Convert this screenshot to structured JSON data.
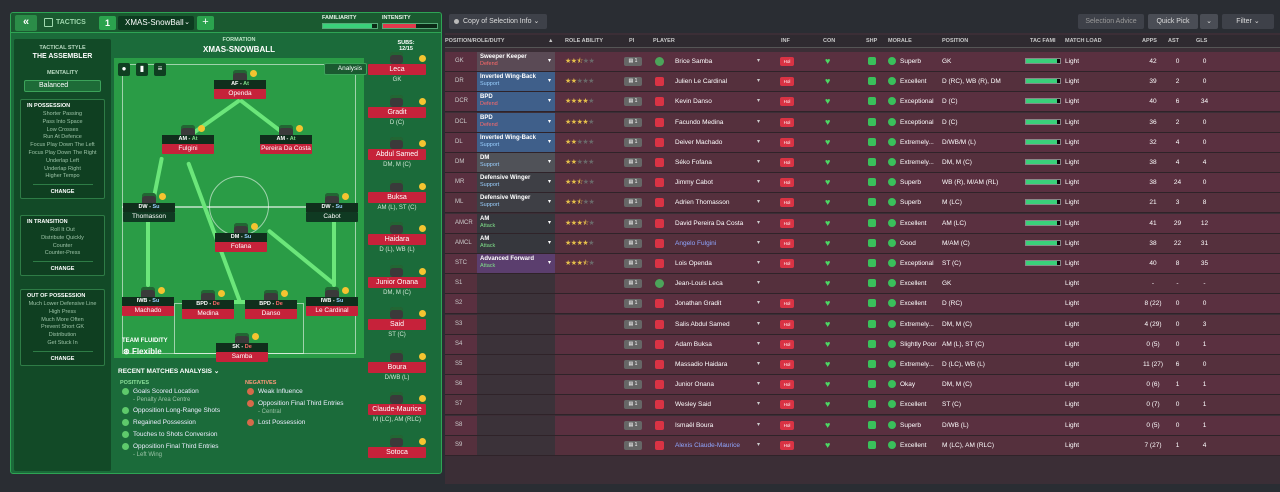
{
  "tactics": {
    "back_label": "«",
    "tactics_label": "TACTICS",
    "tactic_num": "1",
    "tactic_name": "XMAS-SnowBall",
    "plus_label": "+",
    "familiarity_label": "FAMILIARITY",
    "intensity_label": "INTENSITY",
    "familiarity_fraction": 0.9,
    "intensity_fraction": 0.62
  },
  "sidebar": {
    "style_label": "TACTICAL STYLE",
    "style_name": "THE ASSEMBLER",
    "mentality_label": "MENTALITY",
    "mentality_value": "Balanced",
    "possession": {
      "title": "IN POSSESSION",
      "items": [
        "Shorter Passing",
        "Pass Into Space",
        "Low Crosses",
        "Run At Defence",
        "Focus Play Down The Left",
        "Focus Play Down The Right",
        "Underlap Left",
        "Underlap Right",
        "Higher Tempo"
      ],
      "change": "CHANGE"
    },
    "transition": {
      "title": "IN TRANSITION",
      "items": [
        "Roll It Out",
        "Distribute Quickly",
        "Counter",
        "Counter-Press"
      ],
      "change": "CHANGE"
    },
    "outposs": {
      "title": "OUT OF POSSESSION",
      "items": [
        "Much Lower Defensive Line",
        "High Press",
        "Much More Often",
        "Prevent Short GK",
        "Distribution",
        "Get Stuck In"
      ],
      "change": "CHANGE"
    }
  },
  "formation": {
    "label": "FORMATION",
    "name": "XMAS-SNOWBALL",
    "subs_label": "SUBS:",
    "subs_count": "12/15",
    "analysis_label": "Analysis",
    "fluidity_label": "TEAM FLUIDITY",
    "fluidity_value": "Flexible",
    "players": [
      {
        "role": "AF",
        "duty": "At",
        "dc": "a",
        "name": "Openda",
        "dark": false
      },
      {
        "role": "AM",
        "duty": "At",
        "dc": "a",
        "name": "Fulgini",
        "dark": false
      },
      {
        "role": "AM",
        "duty": "At",
        "dc": "a",
        "name": "Pereira Da Costa",
        "dark": false
      },
      {
        "role": "DW",
        "duty": "Su",
        "dc": "s",
        "name": "Thomasson",
        "dark": true
      },
      {
        "role": "DW",
        "duty": "Su",
        "dc": "s",
        "name": "Cabot",
        "dark": true
      },
      {
        "role": "DM",
        "duty": "Su",
        "dc": "s",
        "name": "Fofana",
        "dark": false
      },
      {
        "role": "IWB",
        "duty": "Su",
        "dc": "s",
        "name": "Machado",
        "dark": false
      },
      {
        "role": "BPD",
        "duty": "De",
        "dc": "d",
        "name": "Medina",
        "dark": false
      },
      {
        "role": "BPD",
        "duty": "De",
        "dc": "d",
        "name": "Danso",
        "dark": false
      },
      {
        "role": "IWB",
        "duty": "Su",
        "dc": "s",
        "name": "Le Cardinal",
        "dark": false
      },
      {
        "role": "SK",
        "duty": "De",
        "dc": "d",
        "name": "Samba",
        "dark": false
      }
    ]
  },
  "subs": [
    {
      "name": "Leca",
      "pos": "GK"
    },
    {
      "name": "Gradit",
      "pos": "D (C)"
    },
    {
      "name": "Abdul Samed",
      "pos": "DM, M (C)"
    },
    {
      "name": "Buksa",
      "pos": "AM (L), ST (C)"
    },
    {
      "name": "Haidara",
      "pos": "D (L), WB (L)"
    },
    {
      "name": "Junior Onana",
      "pos": "DM, M (C)"
    },
    {
      "name": "Said",
      "pos": "ST (C)"
    },
    {
      "name": "Boura",
      "pos": "D/WB (L)"
    },
    {
      "name": "Claude-Maurice",
      "pos": "M (LC), AM (RLC)"
    },
    {
      "name": "Sotoca",
      "pos": ""
    }
  ],
  "analysis": {
    "title": "RECENT MATCHES ANALYSIS",
    "positives_label": "POSITIVES",
    "negatives_label": "NEGATIVES",
    "positives": [
      {
        "text": "Goals Scored Location",
        "sub": "- Penalty Area Centre"
      },
      {
        "text": "Opposition Long-Range Shots",
        "sub": ""
      },
      {
        "text": "Regained Possession",
        "sub": ""
      },
      {
        "text": "Touches to Shots Conversion",
        "sub": ""
      },
      {
        "text": "Opposition Final Third Entries",
        "sub": "- Left Wing"
      }
    ],
    "negatives": [
      {
        "text": "Weak Influence",
        "sub": ""
      },
      {
        "text": "Opposition Final Third Entries",
        "sub": "- Central"
      },
      {
        "text": "Lost Possession",
        "sub": ""
      }
    ]
  },
  "toolbar": {
    "copy_label": "Copy of Selection Info",
    "advice_label": "Selection Advice",
    "quickpick_label": "Quick Pick",
    "filter_label": "Filter"
  },
  "columns": {
    "pos": "POSITION/ROLE/DUTY",
    "ability": "ROLE ABILITY",
    "pi": "PI",
    "player": "PLAYER",
    "inf": "INF",
    "con": "CON",
    "shp": "SHP",
    "morale": "MORALE",
    "position": "POSITION",
    "fam": "TAC FAMI",
    "load": "MATCH LOAD",
    "apps": "APPS",
    "ast": "AST",
    "gls": "GLS"
  },
  "rows": [
    {
      "pos": "GK",
      "role": "Sweeper Keeper",
      "duty": "Defend",
      "rc": "#5a4a55",
      "dcol": "#ff6a6a",
      "stars": 2.5,
      "player": "Brice Samba",
      "pic": "g",
      "inf": "Hol",
      "morale": "Superb",
      "position": "GK",
      "fam": 0.92,
      "load": "Light",
      "apps": "42",
      "ast": "0",
      "gls": "0",
      "bg": "#5a3040",
      "link": false
    },
    {
      "pos": "DR",
      "role": "Inverted Wing-Back",
      "duty": "Support",
      "rc": "#3f5f8a",
      "dcol": "#9ad0ff",
      "stars": 2,
      "player": "Julien Le Cardinal",
      "pic": "r",
      "inf": "Hol",
      "morale": "Excellent",
      "position": "D (RC), WB (R), DM",
      "fam": 0.9,
      "load": "Light",
      "apps": "39",
      "ast": "2",
      "gls": "0",
      "bg": "#55303d",
      "link": false
    },
    {
      "pos": "DCR",
      "role": "BPD",
      "duty": "Defend",
      "rc": "#3f5f8a",
      "dcol": "#ff6a6a",
      "stars": 4,
      "player": "Kevin Danso",
      "pic": "r",
      "inf": "Hol",
      "morale": "Exceptional",
      "position": "D (C)",
      "fam": 0.92,
      "load": "Light",
      "apps": "40",
      "ast": "6",
      "gls": "34",
      "bg": "#5a3040",
      "link": false
    },
    {
      "pos": "DCL",
      "role": "BPD",
      "duty": "Defend",
      "rc": "#3f5f8a",
      "dcol": "#ff6a6a",
      "stars": 4,
      "player": "Facundo Medina",
      "pic": "r",
      "inf": "Hol",
      "morale": "Exceptional",
      "position": "D (C)",
      "fam": 0.92,
      "load": "Light",
      "apps": "36",
      "ast": "2",
      "gls": "0",
      "bg": "#55303d",
      "link": false
    },
    {
      "pos": "DL",
      "role": "Inverted Wing-Back",
      "duty": "Support",
      "rc": "#3f5f8a",
      "dcol": "#9ad0ff",
      "stars": 2,
      "player": "Deiver Machado",
      "pic": "r",
      "inf": "Hol",
      "morale": "Extremely...",
      "position": "D/WB/M (L)",
      "fam": 0.9,
      "load": "Light",
      "apps": "32",
      "ast": "4",
      "gls": "0",
      "bg": "#5a3040",
      "link": false
    },
    {
      "pos": "DM",
      "role": "DM",
      "duty": "Support",
      "rc": "#505258",
      "dcol": "#9ad0ff",
      "stars": 2,
      "player": "Séko Fofana",
      "pic": "r",
      "inf": "Hol",
      "morale": "Extremely...",
      "position": "DM, M (C)",
      "fam": 0.92,
      "load": "Light",
      "apps": "38",
      "ast": "4",
      "gls": "4",
      "bg": "#55303d",
      "link": false
    },
    {
      "pos": "MR",
      "role": "Defensive Winger",
      "duty": "Support",
      "rc": "#3e3f45",
      "dcol": "#9ad0ff",
      "stars": 2.5,
      "player": "Jimmy Cabot",
      "pic": "r",
      "inf": "Hol",
      "morale": "Superb",
      "position": "WB (R), M/AM (RL)",
      "fam": 0.9,
      "load": "Light",
      "apps": "38",
      "ast": "24",
      "gls": "0",
      "bg": "#5a3040",
      "link": false
    },
    {
      "pos": "ML",
      "role": "Defensive Winger",
      "duty": "Support",
      "rc": "#3e3f45",
      "dcol": "#9ad0ff",
      "stars": 2.5,
      "player": "Adrien Thomasson",
      "pic": "r",
      "inf": "Hol",
      "morale": "Superb",
      "position": "M (LC)",
      "fam": 0.9,
      "load": "Light",
      "apps": "21",
      "ast": "3",
      "gls": "8",
      "bg": "#55303d",
      "link": false
    },
    {
      "pos": "AMCR",
      "role": "AM",
      "duty": "Attack",
      "rc": "#36373d",
      "dcol": "#7fe08a",
      "stars": 3.5,
      "player": "David Pereira Da Costa",
      "pic": "r",
      "inf": "Hol",
      "morale": "Excellent",
      "position": "AM (LC)",
      "fam": 0.9,
      "load": "Light",
      "apps": "41",
      "ast": "29",
      "gls": "12",
      "bg": "#5a3040",
      "link": false
    },
    {
      "pos": "AMCL",
      "role": "AM",
      "duty": "Attack",
      "rc": "#36373d",
      "dcol": "#7fe08a",
      "stars": 4,
      "player": "Angelo Fulgini",
      "pic": "r",
      "inf": "Hol",
      "morale": "Good",
      "position": "M/AM (C)",
      "fam": 0.9,
      "load": "Light",
      "apps": "38",
      "ast": "22",
      "gls": "31",
      "bg": "#55303d",
      "link": true
    },
    {
      "pos": "STC",
      "role": "Advanced Forward",
      "duty": "Attack",
      "rc": "#5b3e6e",
      "dcol": "#7fe08a",
      "stars": 3.5,
      "player": "Lois Openda",
      "pic": "r",
      "inf": "Hol",
      "morale": "Exceptional",
      "position": "ST (C)",
      "fam": 0.92,
      "load": "Light",
      "apps": "40",
      "ast": "8",
      "gls": "35",
      "bg": "#5a3040",
      "link": false
    },
    {
      "pos": "S1",
      "role": "",
      "duty": "",
      "rc": "",
      "dcol": "",
      "stars": 0,
      "player": "Jean-Louis Leca",
      "pic": "g",
      "inf": "",
      "morale": "Excellent",
      "position": "GK",
      "fam": 0,
      "load": "Light",
      "apps": "-",
      "ast": "-",
      "gls": "-",
      "bg": "#55303d",
      "link": false
    },
    {
      "pos": "S2",
      "role": "",
      "duty": "",
      "rc": "",
      "dcol": "",
      "stars": 0,
      "player": "Jonathan Gradit",
      "pic": "r",
      "inf": "Hol",
      "morale": "Excellent",
      "position": "D (RC)",
      "fam": 0,
      "load": "Light",
      "apps": "8 (22)",
      "ast": "0",
      "gls": "0",
      "bg": "#5a3040",
      "link": false
    },
    {
      "pos": "S3",
      "role": "",
      "duty": "",
      "rc": "",
      "dcol": "",
      "stars": 0,
      "player": "Salis Abdul Samed",
      "pic": "r",
      "inf": "Hol",
      "morale": "Extremely...",
      "position": "DM, M (C)",
      "fam": 0,
      "load": "Light",
      "apps": "4 (29)",
      "ast": "0",
      "gls": "3",
      "bg": "#55303d",
      "link": false
    },
    {
      "pos": "S4",
      "role": "",
      "duty": "",
      "rc": "",
      "dcol": "",
      "stars": 0,
      "player": "Adam Buksa",
      "pic": "r",
      "inf": "Hol",
      "morale": "Slightly Poor",
      "position": "AM (L), ST (C)",
      "fam": 0,
      "load": "Light",
      "apps": "0 (5)",
      "ast": "0",
      "gls": "1",
      "bg": "#5a3040",
      "link": false
    },
    {
      "pos": "S5",
      "role": "",
      "duty": "",
      "rc": "",
      "dcol": "",
      "stars": 0,
      "player": "Massadio Haidara",
      "pic": "r",
      "inf": "Hol",
      "morale": "Extremely...",
      "position": "D (LC), WB (L)",
      "fam": 0,
      "load": "Light",
      "apps": "11 (27)",
      "ast": "6",
      "gls": "0",
      "bg": "#55303d",
      "link": false
    },
    {
      "pos": "S6",
      "role": "",
      "duty": "",
      "rc": "",
      "dcol": "",
      "stars": 0,
      "player": "Junior Onana",
      "pic": "r",
      "inf": "Hol",
      "morale": "Okay",
      "position": "DM, M (C)",
      "fam": 0,
      "load": "Light",
      "apps": "0 (6)",
      "ast": "1",
      "gls": "1",
      "bg": "#5a3040",
      "link": false
    },
    {
      "pos": "S7",
      "role": "",
      "duty": "",
      "rc": "",
      "dcol": "",
      "stars": 0,
      "player": "Wesley Said",
      "pic": "r",
      "inf": "Hol",
      "morale": "Excellent",
      "position": "ST (C)",
      "fam": 0,
      "load": "Light",
      "apps": "0 (7)",
      "ast": "0",
      "gls": "1",
      "bg": "#55303d",
      "link": false
    },
    {
      "pos": "S8",
      "role": "",
      "duty": "",
      "rc": "",
      "dcol": "",
      "stars": 0,
      "player": "Ismaël Boura",
      "pic": "r",
      "inf": "Hol",
      "morale": "Superb",
      "position": "D/WB (L)",
      "fam": 0,
      "load": "Light",
      "apps": "0 (5)",
      "ast": "0",
      "gls": "1",
      "bg": "#5a3040",
      "link": false
    },
    {
      "pos": "S9",
      "role": "",
      "duty": "",
      "rc": "",
      "dcol": "",
      "stars": 0,
      "player": "Alexis Claude-Maurice",
      "pic": "r",
      "inf": "Hol",
      "morale": "Excellent",
      "position": "M (LC), AM (RLC)",
      "fam": 0,
      "load": "Light",
      "apps": "7 (27)",
      "ast": "1",
      "gls": "4",
      "bg": "#55303d",
      "link": true
    }
  ]
}
